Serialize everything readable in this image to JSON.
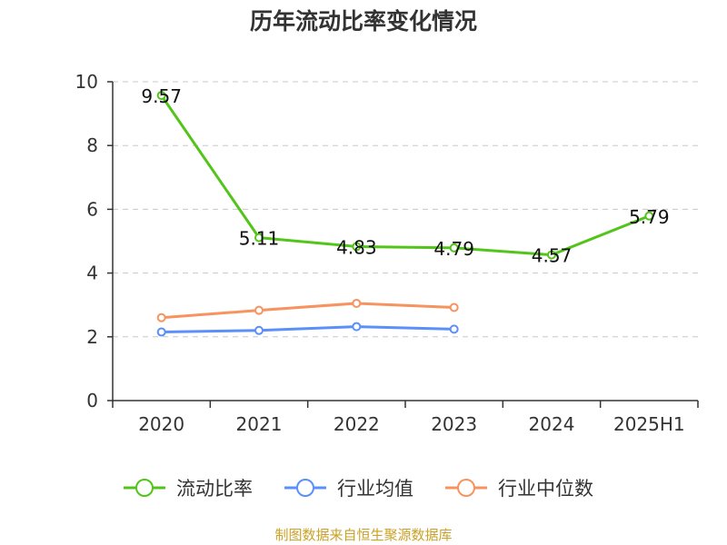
{
  "chart_data": {
    "type": "line",
    "title": "历年流动比率变化情况",
    "categories": [
      "2020",
      "2021",
      "2022",
      "2023",
      "2024",
      "2025H1"
    ],
    "ylim": [
      0,
      10
    ],
    "yticks": [
      0,
      2,
      4,
      6,
      8,
      10
    ],
    "grid": true,
    "legend_position": "bottom",
    "series": [
      {
        "name": "流动比率",
        "color": "#52c41a",
        "values": [
          9.57,
          5.11,
          4.83,
          4.79,
          4.57,
          5.79
        ],
        "labels": [
          "9.57",
          "5.11",
          "4.83",
          "4.79",
          "4.57",
          "5.79"
        ]
      },
      {
        "name": "行业均值",
        "color": "#5b8ff9",
        "values": [
          2.15,
          2.2,
          2.32,
          2.24,
          null,
          null
        ]
      },
      {
        "name": "行业中位数",
        "color": "#f6935f",
        "values": [
          2.6,
          2.83,
          3.05,
          2.92,
          null,
          null
        ]
      }
    ]
  },
  "source": "制图数据来自恒生聚源数据库"
}
